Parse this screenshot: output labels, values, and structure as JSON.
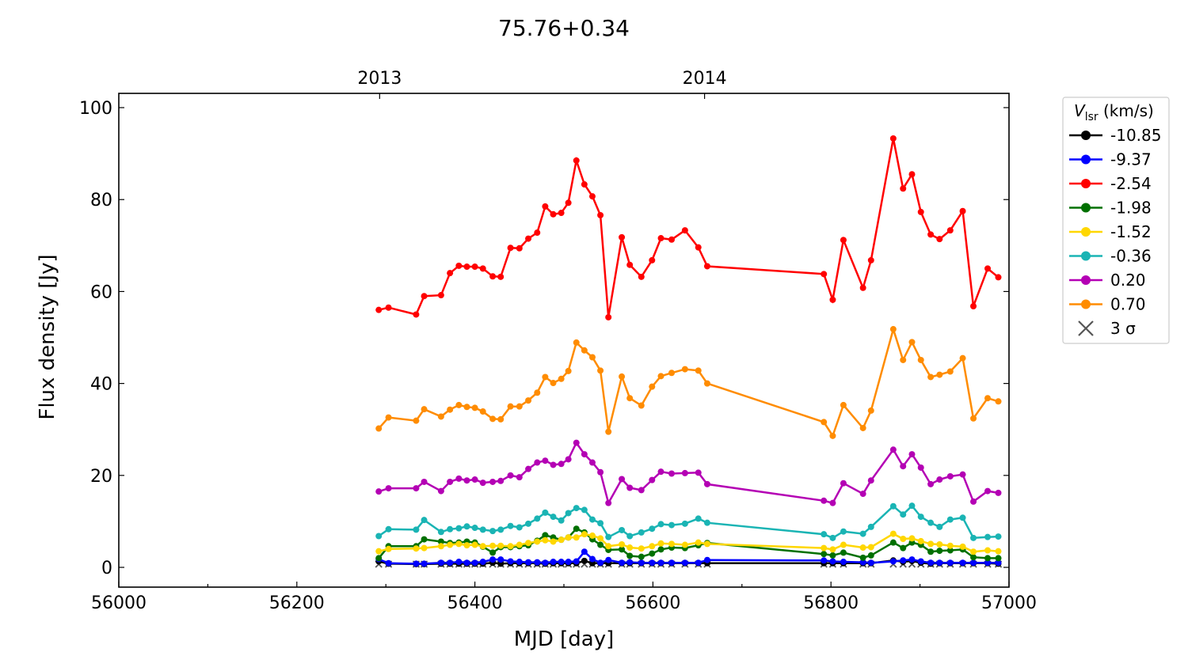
{
  "chart_data": {
    "type": "line",
    "title": "75.76+0.34",
    "xlabel": "MJD [day]",
    "ylabel": "Flux density [Jy]",
    "xlim": [
      56000,
      57000
    ],
    "ylim": [
      -4.3,
      103.1
    ],
    "x_ticks": [
      56000,
      56200,
      56400,
      56600,
      56800,
      57000
    ],
    "y_ticks": [
      0,
      20,
      40,
      60,
      80,
      100
    ],
    "top_axis": {
      "ticks": [
        {
          "label": "2013",
          "mjd": 56293
        },
        {
          "label": "2014",
          "mjd": 56658
        }
      ]
    },
    "grid": false,
    "legend": {
      "title_main": "V",
      "title_sub": "lsr",
      "title_unit": " (km/s)",
      "placement": "right-outside",
      "sigma_label": "3 σ"
    },
    "x": [
      56292,
      56303,
      56334,
      56343,
      56362,
      56372,
      56382,
      56391,
      56400,
      56409,
      56420,
      56429,
      56440,
      56450,
      56460,
      56470,
      56479,
      56488,
      56497,
      56505,
      56514,
      56523,
      56532,
      56541,
      56550,
      56565,
      56574,
      56587,
      56599,
      56609,
      56621,
      56636,
      56651,
      56661,
      56792,
      56802,
      56814,
      56836,
      56845,
      56870,
      56881,
      56891,
      56901,
      56912,
      56922,
      56934,
      56948,
      56960,
      56976,
      56988
    ],
    "series": [
      {
        "name": "-10.85",
        "color": "#000000",
        "values": [
          1.3,
          0.8,
          0.7,
          0.7,
          0.8,
          0.8,
          0.8,
          0.8,
          0.8,
          0.8,
          1.0,
          0.8,
          0.9,
          0.9,
          0.9,
          0.9,
          0.8,
          0.9,
          0.9,
          0.9,
          0.9,
          1.4,
          0.9,
          0.9,
          0.9,
          0.9,
          0.9,
          0.9,
          0.9,
          0.9,
          0.9,
          0.9,
          0.9,
          0.9,
          0.9,
          0.9,
          0.9,
          0.9,
          0.9,
          1.5,
          1.2,
          1.4,
          1.0,
          0.8,
          0.9,
          0.9,
          0.9,
          0.9,
          0.9,
          0.8
        ]
      },
      {
        "name": "-9.37",
        "color": "#0000ff",
        "values": [
          1.8,
          0.9,
          0.8,
          0.8,
          1.0,
          1.0,
          1.2,
          1.0,
          1.0,
          1.2,
          1.7,
          1.7,
          1.3,
          1.2,
          1.1,
          1.1,
          1.0,
          1.2,
          1.2,
          1.2,
          1.3,
          3.4,
          1.8,
          1.0,
          1.6,
          1.0,
          1.1,
          1.0,
          1.0,
          1.0,
          1.0,
          1.0,
          1.0,
          1.6,
          1.5,
          1.3,
          1.2,
          1.1,
          1.0,
          1.3,
          1.5,
          1.7,
          1.3,
          1.0,
          1.0,
          1.0,
          1.0,
          1.0,
          1.0,
          1.0
        ]
      },
      {
        "name": "-2.54",
        "color": "#ff0000",
        "values": [
          56.0,
          56.5,
          55.0,
          59.0,
          59.2,
          64.0,
          65.6,
          65.4,
          65.4,
          65.0,
          63.3,
          63.2,
          69.5,
          69.4,
          71.5,
          72.8,
          78.5,
          76.8,
          77.1,
          79.3,
          88.5,
          83.3,
          80.7,
          76.6,
          54.4,
          71.8,
          65.8,
          63.2,
          66.8,
          71.6,
          71.3,
          73.3,
          69.6,
          65.5,
          63.8,
          58.2,
          71.2,
          60.8,
          66.8,
          93.3,
          82.4,
          85.5,
          77.3,
          72.4,
          71.4,
          73.3,
          77.5,
          56.8,
          65.0,
          63.1
        ]
      },
      {
        "name": "-1.98",
        "color": "#007000",
        "values": [
          2.0,
          4.6,
          4.6,
          6.1,
          5.6,
          5.3,
          5.4,
          5.6,
          5.4,
          4.5,
          3.2,
          4.4,
          4.4,
          4.6,
          4.8,
          5.8,
          7.0,
          6.5,
          6.0,
          6.5,
          8.4,
          7.6,
          6.1,
          4.9,
          3.8,
          3.9,
          2.5,
          2.3,
          3.0,
          3.9,
          4.3,
          4.2,
          4.8,
          5.3,
          2.9,
          2.6,
          3.2,
          2.1,
          2.6,
          5.4,
          4.2,
          5.4,
          4.9,
          3.4,
          3.6,
          3.7,
          3.9,
          2.2,
          2.0,
          2.0
        ]
      },
      {
        "name": "-1.52",
        "color": "#ffd700",
        "values": [
          3.5,
          4.0,
          4.1,
          4.2,
          4.6,
          4.9,
          5.1,
          4.8,
          4.9,
          4.6,
          4.7,
          4.7,
          4.6,
          4.9,
          5.3,
          5.6,
          5.9,
          5.6,
          6.0,
          6.5,
          6.5,
          7.2,
          6.9,
          6.3,
          4.6,
          5.0,
          4.3,
          4.1,
          4.6,
          5.2,
          5.1,
          4.9,
          5.4,
          5.1,
          4.2,
          3.9,
          4.9,
          4.3,
          4.4,
          7.3,
          6.2,
          6.3,
          5.7,
          5.1,
          5.0,
          4.7,
          4.5,
          3.4,
          3.7,
          3.5
        ]
      },
      {
        "name": "-0.36",
        "color": "#1ab4b4",
        "values": [
          6.8,
          8.3,
          8.2,
          10.3,
          7.7,
          8.3,
          8.5,
          8.9,
          8.6,
          8.2,
          7.9,
          8.2,
          9.0,
          8.7,
          9.5,
          10.6,
          11.9,
          11.0,
          10.2,
          11.8,
          12.9,
          12.5,
          10.4,
          9.6,
          6.6,
          8.1,
          6.8,
          7.6,
          8.4,
          9.4,
          9.2,
          9.5,
          10.6,
          9.7,
          7.2,
          6.4,
          7.8,
          7.3,
          8.8,
          13.3,
          11.5,
          13.4,
          11.0,
          9.7,
          8.8,
          10.4,
          10.8,
          6.4,
          6.6,
          6.7
        ]
      },
      {
        "name": "0.20",
        "color": "#b400b4",
        "values": [
          16.5,
          17.2,
          17.2,
          18.6,
          16.6,
          18.6,
          19.3,
          18.9,
          19.1,
          18.4,
          18.6,
          18.8,
          20.0,
          19.6,
          21.4,
          22.8,
          23.2,
          22.3,
          22.5,
          23.5,
          27.1,
          24.6,
          22.8,
          20.7,
          14.0,
          19.2,
          17.3,
          16.8,
          19.0,
          20.8,
          20.4,
          20.5,
          20.6,
          18.1,
          14.5,
          14.0,
          18.3,
          16.0,
          18.9,
          25.6,
          22.0,
          24.6,
          21.7,
          18.1,
          19.1,
          19.8,
          20.2,
          14.3,
          16.6,
          16.2
        ]
      },
      {
        "name": "0.70",
        "color": "#ff8c00",
        "values": [
          30.2,
          32.6,
          31.9,
          34.4,
          32.8,
          34.3,
          35.3,
          34.9,
          34.7,
          33.9,
          32.3,
          32.2,
          35.0,
          35.0,
          36.3,
          38.0,
          41.4,
          40.1,
          41.0,
          42.7,
          48.9,
          47.2,
          45.7,
          42.8,
          29.5,
          41.5,
          36.8,
          35.2,
          39.3,
          41.6,
          42.3,
          43.1,
          42.8,
          40.0,
          31.6,
          28.6,
          35.3,
          30.3,
          34.1,
          51.8,
          45.1,
          49.0,
          45.1,
          41.4,
          41.9,
          42.6,
          45.5,
          32.4,
          36.8,
          36.1
        ]
      }
    ],
    "sigma3": {
      "name": "3 σ",
      "color": "#555555",
      "value": 0.7
    }
  }
}
